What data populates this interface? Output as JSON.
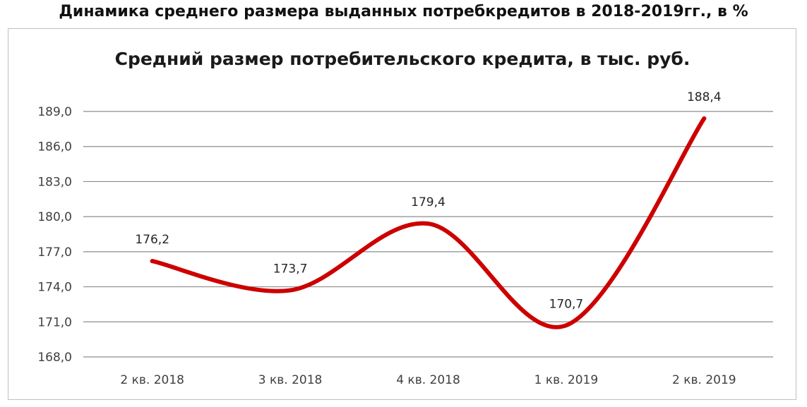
{
  "page_title": "Динамика среднего размера выданных потребкредитов в 2018-2019гг., в %",
  "chart_data": {
    "type": "line",
    "title": "Средний размер потребительского кредита, в тыс. руб.",
    "xlabel": "",
    "ylabel": "",
    "categories": [
      "2 кв. 2018",
      "3 кв. 2018",
      "4 кв. 2018",
      "1 кв. 2019",
      "2 кв. 2019"
    ],
    "series": [
      {
        "values": [
          176.2,
          173.7,
          179.4,
          170.7,
          188.4
        ],
        "labels": [
          "176,2",
          "173,7",
          "179,4",
          "170,7",
          "188,4"
        ],
        "color": "#cc0000",
        "smooth": true
      }
    ],
    "ylim": [
      168.0,
      189.0
    ],
    "yticks": [
      168.0,
      171.0,
      174.0,
      177.0,
      180.0,
      183.0,
      186.0,
      189.0
    ],
    "ytick_labels": [
      "168,0",
      "171,0",
      "174,0",
      "177,0",
      "180,0",
      "183,0",
      "186,0",
      "189,0"
    ],
    "grid": true,
    "legend": "none"
  }
}
